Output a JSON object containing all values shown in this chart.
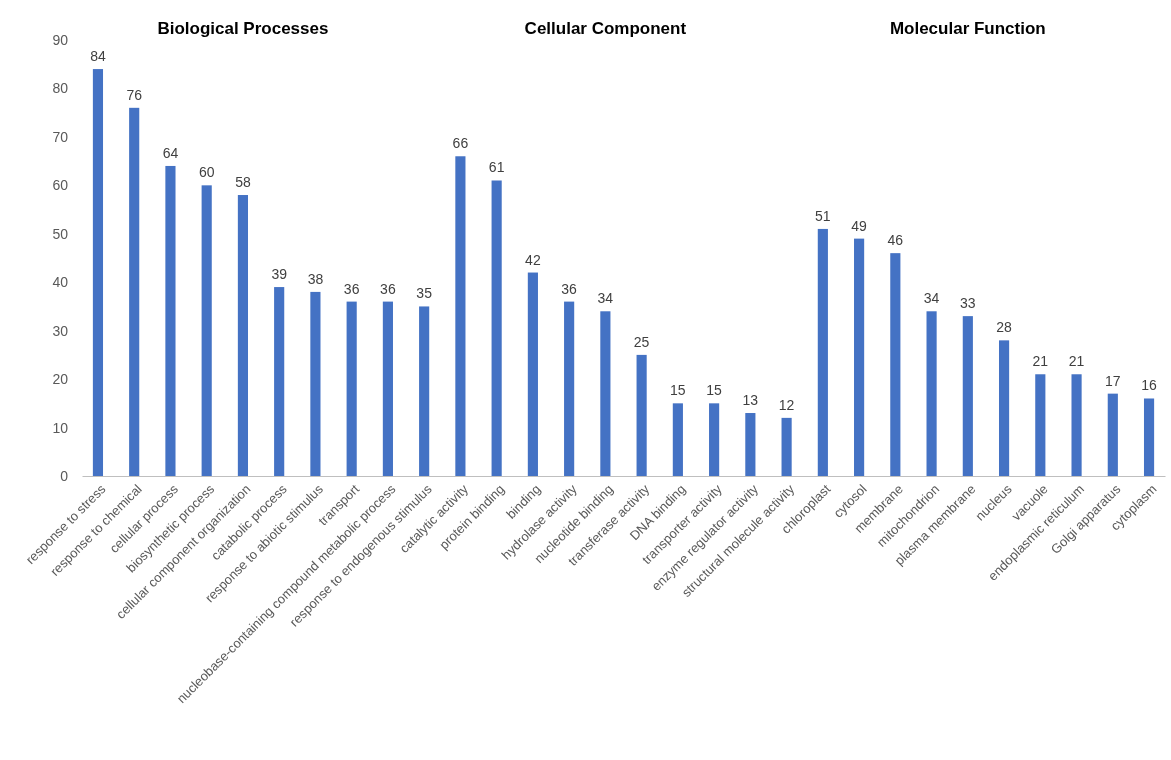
{
  "chart_data": {
    "type": "bar",
    "categories": [
      "response to stress",
      "response to chemical",
      "cellular process",
      "biosynthetic process",
      "cellular component organization",
      "catabolic process",
      "response to abiotic stimulus",
      "transport",
      "nucleobase-containing compound metabolic process",
      "response to endogenous stimulus",
      "catalytic activity",
      "protein binding",
      "binding",
      "hydrolase activity",
      "nucleotide binding",
      "transferase activity",
      "DNA binding",
      "transporter activity",
      "enzyme regulator activity",
      "structural molecule activity",
      "chloroplast",
      "cytosol",
      "membrane",
      "mitochondrion",
      "plasma membrane",
      "nucleus",
      "vacuole",
      "endoplasmic reticulum",
      "Golgi apparatus",
      "cytoplasm"
    ],
    "values": [
      84,
      76,
      64,
      60,
      58,
      39,
      38,
      36,
      36,
      35,
      66,
      61,
      42,
      36,
      34,
      25,
      15,
      15,
      13,
      12,
      51,
      49,
      46,
      34,
      33,
      28,
      21,
      21,
      17,
      16
    ],
    "color": "#4472c4",
    "ylim": [
      0,
      90
    ],
    "yticks": [
      0,
      10,
      20,
      30,
      40,
      50,
      60,
      70,
      80,
      90
    ],
    "data_labels": true,
    "annotations": [
      "Biological Processes",
      "Cellular Component",
      "Molecular Function"
    ]
  }
}
